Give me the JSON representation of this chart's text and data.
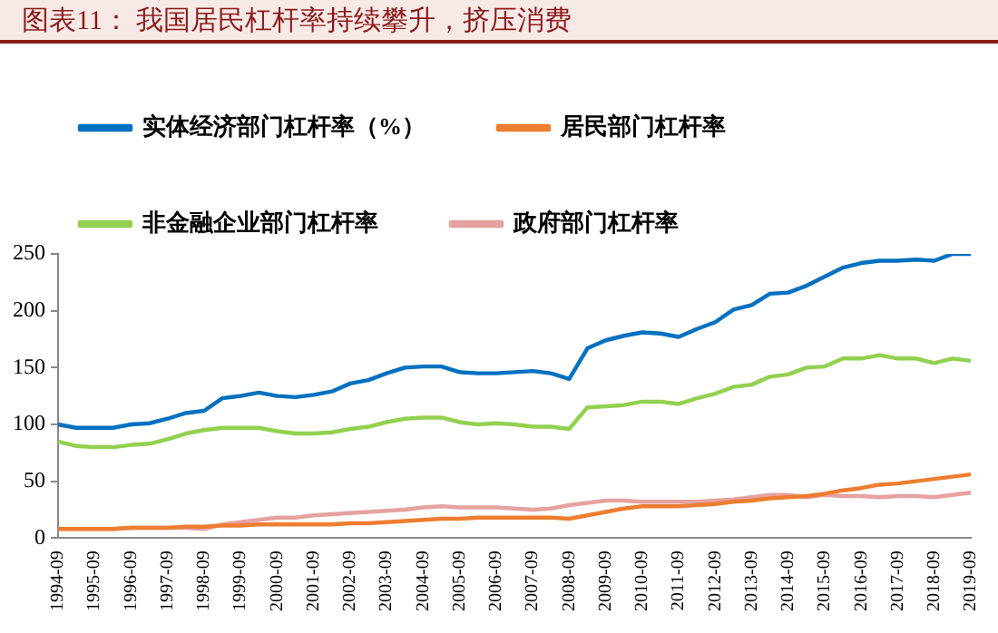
{
  "chart_data": {
    "type": "line",
    "title": "图表11：  我国居民杠杆率持续攀升，挤压消费",
    "categories": [
      "1994-09",
      null,
      "1995-09",
      null,
      "1996-09",
      null,
      "1997-09",
      null,
      "1998-09",
      null,
      "1999-09",
      null,
      "2000-09",
      null,
      "2001-09",
      null,
      "2002-09",
      null,
      "2003-09",
      null,
      "2004-09",
      null,
      "2005-09",
      null,
      "2006-09",
      null,
      "2007-09",
      null,
      "2008-09",
      null,
      "2009-09",
      null,
      "2010-09",
      null,
      "2011-09",
      null,
      "2012-09",
      null,
      "2013-09",
      null,
      "2014-09",
      null,
      "2015-09",
      null,
      "2016-09",
      null,
      "2017-09",
      null,
      "2018-09",
      null,
      "2019-09"
    ],
    "series": [
      {
        "name": "实体经济部门杠杆率（%）",
        "color": "#0070c0",
        "values": [
          100,
          97,
          97,
          97,
          100,
          101,
          105,
          110,
          112,
          123,
          125,
          128,
          125,
          124,
          126,
          129,
          136,
          139,
          145,
          150,
          151,
          151,
          146,
          145,
          145,
          146,
          147,
          145,
          140,
          167,
          174,
          178,
          181,
          180,
          177,
          184,
          190,
          201,
          205,
          215,
          216,
          222,
          230,
          238,
          242,
          244,
          244,
          245,
          244,
          250,
          250
        ]
      },
      {
        "name": "居民部门杠杆率",
        "color": "#ed7d31",
        "values": [
          8,
          8,
          8,
          8,
          9,
          9,
          9,
          10,
          10,
          11,
          11,
          12,
          12,
          12,
          12,
          12,
          13,
          13,
          14,
          15,
          16,
          17,
          17,
          18,
          18,
          18,
          18,
          18,
          17,
          20,
          23,
          26,
          28,
          28,
          28,
          29,
          30,
          32,
          33,
          35,
          36,
          37,
          39,
          42,
          44,
          47,
          48,
          50,
          52,
          54,
          56
        ]
      },
      {
        "name": "非金融企业部门杠杆率",
        "color": "#92d050",
        "values": [
          85,
          81,
          80,
          80,
          82,
          83,
          87,
          92,
          95,
          97,
          97,
          97,
          94,
          92,
          92,
          93,
          96,
          98,
          102,
          105,
          106,
          106,
          102,
          100,
          101,
          100,
          98,
          98,
          96,
          115,
          116,
          117,
          120,
          120,
          118,
          123,
          127,
          133,
          135,
          142,
          144,
          150,
          151,
          158,
          158,
          161,
          158,
          158,
          154,
          158,
          156
        ]
      },
      {
        "name": "政府部门杠杆率",
        "color": "#e6a1a1",
        "values": [
          8,
          8,
          8,
          8,
          9,
          9,
          9,
          9,
          8,
          12,
          14,
          16,
          18,
          18,
          20,
          21,
          22,
          23,
          24,
          25,
          27,
          28,
          27,
          27,
          27,
          26,
          25,
          26,
          29,
          31,
          33,
          33,
          32,
          32,
          32,
          32,
          33,
          34,
          36,
          38,
          38,
          36,
          38,
          37,
          37,
          36,
          37,
          37,
          36,
          38,
          40
        ]
      }
    ],
    "ylim": [
      0,
      250
    ],
    "yticks": [
      0,
      50,
      100,
      150,
      200,
      250
    ],
    "grid": false,
    "legend": "top",
    "marker": "none",
    "line_style": "solid"
  }
}
